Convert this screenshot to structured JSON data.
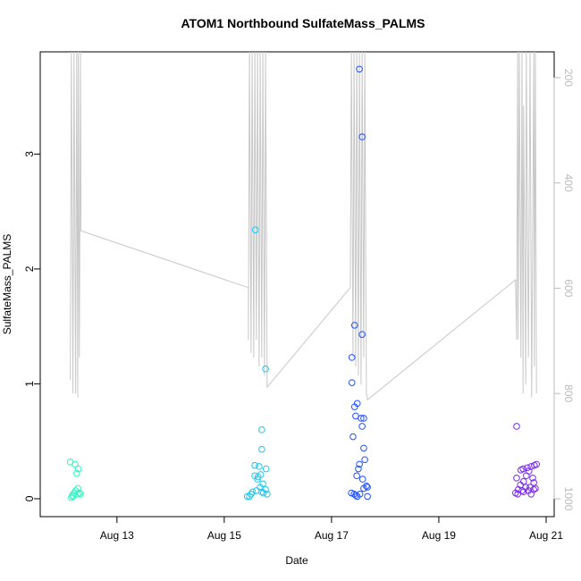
{
  "chart_data": {
    "type": "scatter",
    "title": "ATOM1 Northbound SulfateMass_PALMS",
    "xlabel": "Date",
    "ylabel": "SulfateMass_PALMS",
    "xlim": [
      11.57,
      21.15
    ],
    "xticks": [
      {
        "value": 13,
        "label": "Aug 13"
      },
      {
        "value": 15,
        "label": "Aug 15"
      },
      {
        "value": 17,
        "label": "Aug 17"
      },
      {
        "value": 19,
        "label": "Aug 19"
      },
      {
        "value": 21,
        "label": "Aug 21"
      }
    ],
    "ylim": [
      -0.156,
      3.89
    ],
    "yticks": [
      0,
      1,
      2,
      3
    ],
    "y2lim": [
      1034,
      151
    ],
    "y2ticks": [
      200,
      400,
      600,
      800,
      1000
    ],
    "y2color": "#bbbbbb",
    "series": [
      {
        "color": "#30f5c0",
        "x": [
          12.13,
          12.22,
          12.28,
          12.25,
          12.27,
          12.23,
          12.3,
          12.32,
          12.2,
          12.17,
          12.15,
          12.18,
          12.27
        ],
        "values": [
          0.32,
          0.3,
          0.26,
          0.22,
          0.09,
          0.07,
          0.05,
          0.04,
          0.05,
          0.03,
          0.01,
          0.02,
          0.04
        ]
      },
      {
        "color": "#1cc8f0",
        "x": [
          15.58,
          15.77,
          15.7,
          15.7,
          15.57,
          15.65,
          15.78,
          15.57,
          15.63,
          15.68,
          15.62,
          15.72,
          15.77,
          15.67,
          15.6,
          15.53,
          15.47,
          15.5,
          15.43,
          15.73,
          15.8,
          15.7
        ],
        "values": [
          2.34,
          1.13,
          0.6,
          0.43,
          0.29,
          0.28,
          0.26,
          0.2,
          0.19,
          0.21,
          0.17,
          0.13,
          0.08,
          0.1,
          0.07,
          0.06,
          0.02,
          0.04,
          0.02,
          0.05,
          0.04,
          0.06
        ]
      },
      {
        "color": "#2050ff",
        "x": [
          17.52,
          17.57,
          17.43,
          17.57,
          17.38,
          17.38,
          17.48,
          17.43,
          17.45,
          17.55,
          17.6,
          17.57,
          17.4,
          17.6,
          17.62,
          17.52,
          17.5,
          17.47,
          17.58,
          17.65,
          17.6,
          17.67,
          17.37,
          17.42,
          17.53,
          17.48,
          17.67,
          17.45
        ],
        "values": [
          3.74,
          3.15,
          1.51,
          1.43,
          1.23,
          1.01,
          0.83,
          0.8,
          0.72,
          0.7,
          0.7,
          0.63,
          0.54,
          0.44,
          0.34,
          0.3,
          0.26,
          0.2,
          0.17,
          0.11,
          0.09,
          0.1,
          0.05,
          0.04,
          0.04,
          0.02,
          0.02,
          0.03
        ]
      },
      {
        "color": "#7a2af0",
        "x": [
          20.45,
          20.78,
          20.72,
          20.65,
          20.57,
          20.53,
          20.82,
          20.68,
          20.63,
          20.45,
          20.75,
          20.58,
          20.77,
          20.52,
          20.62,
          20.7,
          20.77,
          20.48,
          20.55,
          20.67,
          20.43,
          20.72,
          20.47,
          20.58,
          20.8
        ],
        "values": [
          0.63,
          0.29,
          0.28,
          0.27,
          0.26,
          0.25,
          0.3,
          0.24,
          0.2,
          0.18,
          0.18,
          0.15,
          0.14,
          0.12,
          0.1,
          0.1,
          0.08,
          0.08,
          0.07,
          0.07,
          0.05,
          0.04,
          0.04,
          0.06,
          0.09
        ]
      },
      {
        "type": "line",
        "axis": "y2",
        "color": "#c8c8c8",
        "x": [
          12.13,
          12.15,
          12.17,
          12.18,
          12.2,
          12.23,
          12.25,
          12.27,
          12.28,
          12.3,
          12.32,
          12.33,
          15.45,
          15.45,
          15.47,
          15.5,
          15.52,
          15.55,
          15.57,
          15.6,
          15.62,
          15.65,
          15.67,
          15.7,
          15.72,
          15.75,
          15.77,
          15.8,
          17.35,
          17.37,
          17.4,
          17.42,
          17.45,
          17.47,
          17.5,
          17.52,
          17.55,
          17.57,
          17.6,
          17.62,
          17.65,
          17.67,
          20.43,
          20.45,
          20.47,
          20.48,
          20.5,
          20.53,
          20.55,
          20.57,
          20.58,
          20.62,
          20.63,
          20.67,
          20.7,
          20.73,
          20.77,
          20.78,
          20.8,
          20.82
        ],
        "values": [
          774,
          151,
          562,
          800,
          151,
          800,
          151,
          808,
          151,
          732,
          151,
          491,
          599,
          698,
          151,
          723,
          151,
          732,
          151,
          698,
          151,
          749,
          151,
          732,
          151,
          766,
          151,
          788,
          599,
          151,
          732,
          151,
          749,
          151,
          766,
          151,
          783,
          151,
          732,
          151,
          800,
          812,
          584,
          698,
          151,
          698,
          151,
          732,
          151,
          800,
          253,
          783,
          151,
          732,
          151,
          808,
          151,
          749,
          151,
          800
        ]
      }
    ]
  }
}
